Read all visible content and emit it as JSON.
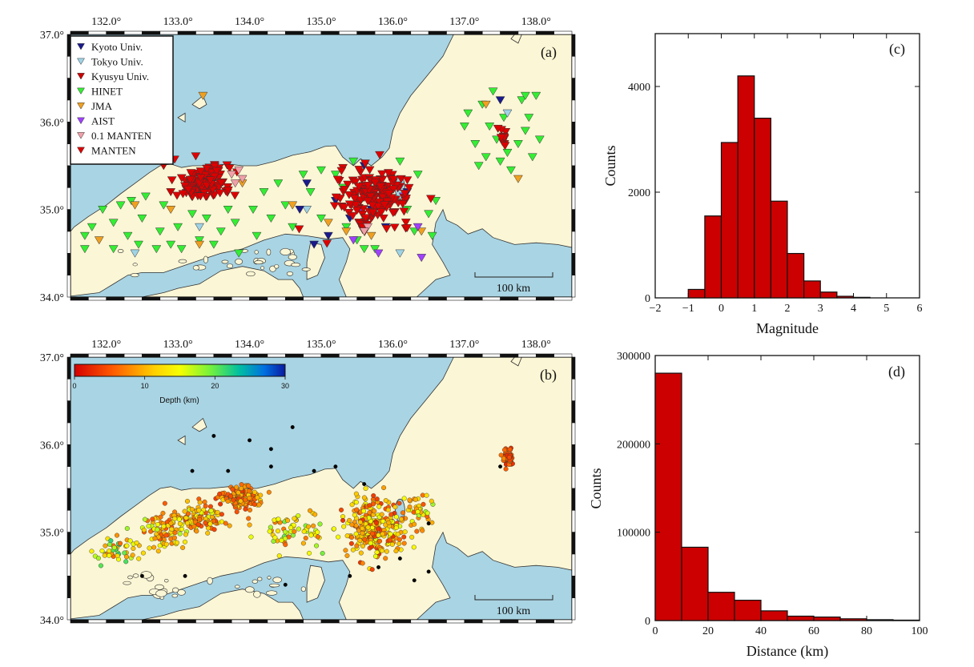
{
  "colors": {
    "sea": "#a9d4e3",
    "land": "#fbf6d5",
    "bar": "#cc0000",
    "coast": "#333333"
  },
  "chart_data": [
    {
      "type": "scatter",
      "panel": "(a)",
      "xlim": [
        131.5,
        138.5
      ],
      "ylim": [
        34.0,
        37.0
      ],
      "x_ticks": [
        "132.0°",
        "133.0°",
        "134.0°",
        "135.0°",
        "136.0°",
        "137.0°",
        "138.0°"
      ],
      "y_ticks": [
        "34.0°",
        "35.0°",
        "36.0°",
        "37.0°"
      ],
      "scale_bar": "100 km",
      "legend_placement": "top-left",
      "series": [
        {
          "name": "Kyoto Univ.",
          "color": "#1a1a8c",
          "points": [
            [
              134.8,
              35.3
            ],
            [
              135.2,
              35.1
            ],
            [
              135.4,
              34.9
            ],
            [
              135.7,
              35.0
            ],
            [
              135.9,
              34.8
            ],
            [
              136.2,
              35.2
            ],
            [
              134.9,
              34.6
            ],
            [
              135.1,
              34.7
            ],
            [
              137.5,
              36.25
            ],
            [
              135.6,
              35.5
            ],
            [
              134.7,
              35.0
            ]
          ]
        },
        {
          "name": "Tokyo Univ.",
          "color": "#9fd3e6",
          "points": [
            [
              132.4,
              34.5
            ],
            [
              133.3,
              34.8
            ],
            [
              134.8,
              35.0
            ],
            [
              136.1,
              34.5
            ],
            [
              137.6,
              36.1
            ]
          ]
        },
        {
          "name": "Kyusyu Univ.",
          "color": "#cc0000",
          "points": [
            [
              132.8,
              35.5
            ],
            [
              132.9,
              35.2
            ]
          ]
        },
        {
          "name": "HINET",
          "color": "#33ee33",
          "points": [
            [
              131.7,
              34.7
            ],
            [
              131.7,
              34.55
            ],
            [
              131.8,
              34.8
            ],
            [
              131.95,
              35.0
            ],
            [
              132.1,
              34.85
            ],
            [
              132.1,
              34.55
            ],
            [
              132.2,
              35.05
            ],
            [
              132.3,
              34.7
            ],
            [
              132.35,
              35.1
            ],
            [
              132.45,
              34.6
            ],
            [
              132.5,
              34.9
            ],
            [
              132.55,
              35.15
            ],
            [
              132.7,
              34.55
            ],
            [
              132.75,
              34.75
            ],
            [
              132.8,
              35.05
            ],
            [
              132.9,
              34.6
            ],
            [
              133.0,
              34.8
            ],
            [
              133.05,
              34.55
            ],
            [
              133.2,
              34.95
            ],
            [
              133.3,
              34.65
            ],
            [
              133.4,
              34.9
            ],
            [
              133.5,
              34.6
            ],
            [
              133.6,
              34.75
            ],
            [
              133.7,
              35.0
            ],
            [
              133.8,
              34.85
            ],
            [
              133.85,
              34.5
            ],
            [
              134.05,
              35.0
            ],
            [
              134.1,
              34.7
            ],
            [
              134.2,
              35.2
            ],
            [
              134.3,
              34.9
            ],
            [
              134.4,
              35.3
            ],
            [
              134.5,
              35.05
            ],
            [
              134.6,
              34.8
            ],
            [
              134.75,
              35.4
            ],
            [
              134.85,
              35.2
            ],
            [
              135.0,
              35.45
            ],
            [
              135.0,
              34.9
            ],
            [
              135.2,
              35.4
            ],
            [
              135.3,
              35.25
            ],
            [
              135.35,
              34.8
            ],
            [
              135.45,
              35.55
            ],
            [
              135.5,
              34.65
            ],
            [
              135.6,
              34.55
            ],
            [
              135.75,
              34.55
            ],
            [
              136.1,
              35.55
            ],
            [
              136.2,
              35.0
            ],
            [
              136.3,
              34.75
            ],
            [
              136.35,
              35.4
            ],
            [
              136.5,
              34.95
            ],
            [
              136.55,
              34.7
            ],
            [
              136.6,
              35.1
            ],
            [
              137.0,
              35.95
            ],
            [
              137.05,
              36.1
            ],
            [
              137.15,
              35.75
            ],
            [
              137.25,
              36.2
            ],
            [
              137.35,
              35.95
            ],
            [
              137.3,
              35.6
            ],
            [
              137.4,
              36.35
            ],
            [
              137.45,
              35.8
            ],
            [
              137.5,
              35.55
            ],
            [
              137.55,
              36.05
            ],
            [
              137.65,
              35.45
            ],
            [
              137.75,
              35.75
            ],
            [
              137.8,
              36.25
            ],
            [
              137.85,
              35.9
            ],
            [
              137.9,
              36.05
            ],
            [
              137.95,
              35.6
            ],
            [
              138.0,
              36.3
            ],
            [
              138.05,
              35.8
            ],
            [
              137.85,
              36.3
            ],
            [
              137.2,
              35.5
            ],
            [
              137.6,
              35.65
            ]
          ]
        },
        {
          "name": "JMA",
          "color": "#f0a020",
          "points": [
            [
              131.9,
              34.65
            ],
            [
              132.4,
              35.05
            ],
            [
              132.9,
              35.0
            ],
            [
              133.3,
              34.6
            ],
            [
              133.9,
              35.3
            ],
            [
              134.6,
              35.05
            ],
            [
              135.1,
              34.85
            ],
            [
              135.35,
              34.75
            ],
            [
              135.7,
              34.7
            ],
            [
              136.4,
              34.75
            ],
            [
              137.3,
              36.2
            ],
            [
              137.75,
              35.35
            ],
            [
              133.35,
              36.3
            ]
          ]
        },
        {
          "name": "AIST",
          "color": "#a040ff",
          "points": [
            [
              135.45,
              34.65
            ],
            [
              135.8,
              34.5
            ],
            [
              136.15,
              35.15
            ],
            [
              136.35,
              34.8
            ],
            [
              136.4,
              34.45
            ],
            [
              135.55,
              35.0
            ]
          ]
        },
        {
          "name": "0.1 MANTEN",
          "color": "#f0a0a8",
          "points": [
            [
              133.75,
              35.4
            ],
            [
              133.8,
              35.3
            ],
            [
              133.85,
              35.45
            ],
            [
              133.9,
              35.35
            ],
            [
              135.65,
              34.8
            ],
            [
              135.6,
              34.75
            ]
          ]
        },
        {
          "name": "MANTEN",
          "color": "#dd0000",
          "clusters": [
            [
              133.35,
              35.3,
              0.35,
              0.17,
              140
            ],
            [
              135.75,
              35.15,
              0.45,
              0.28,
              170
            ],
            [
              137.55,
              35.8,
              0.08,
              0.1,
              10
            ]
          ]
        }
      ]
    },
    {
      "type": "scatter",
      "panel": "(b)",
      "xlim": [
        131.5,
        138.5
      ],
      "ylim": [
        34.0,
        37.0
      ],
      "x_ticks": [
        "132.0°",
        "133.0°",
        "134.0°",
        "135.0°",
        "136.0°",
        "137.0°",
        "138.0°"
      ],
      "y_ticks": [
        "34.0°",
        "35.0°",
        "36.0°",
        "37.0°"
      ],
      "scale_bar": "100 km",
      "colorbar": {
        "label": "Depth (km)",
        "ticks": [
          "0",
          "10",
          "20",
          "30"
        ],
        "range": [
          0,
          30
        ]
      },
      "clusters": [
        {
          "cx": 133.9,
          "cy": 35.4,
          "sx": 0.25,
          "sy": 0.1,
          "n": 160,
          "depth": [
            3,
            12
          ]
        },
        {
          "cx": 133.3,
          "cy": 35.15,
          "sx": 0.3,
          "sy": 0.12,
          "n": 110,
          "depth": [
            4,
            16
          ]
        },
        {
          "cx": 132.8,
          "cy": 35.0,
          "sx": 0.25,
          "sy": 0.16,
          "n": 80,
          "depth": [
            5,
            18
          ]
        },
        {
          "cx": 132.2,
          "cy": 34.8,
          "sx": 0.3,
          "sy": 0.15,
          "n": 50,
          "depth": [
            6,
            22
          ]
        },
        {
          "cx": 135.75,
          "cy": 35.05,
          "sx": 0.32,
          "sy": 0.28,
          "n": 280,
          "depth": [
            3,
            16
          ]
        },
        {
          "cx": 136.35,
          "cy": 35.25,
          "sx": 0.15,
          "sy": 0.2,
          "n": 40,
          "depth": [
            5,
            18
          ]
        },
        {
          "cx": 134.6,
          "cy": 35.0,
          "sx": 0.5,
          "sy": 0.22,
          "n": 70,
          "depth": [
            5,
            20
          ]
        },
        {
          "cx": 137.6,
          "cy": 35.85,
          "sx": 0.07,
          "sy": 0.08,
          "n": 60,
          "depth": [
            2,
            8
          ]
        }
      ],
      "deep_events": [
        [
          133.5,
          36.1
        ],
        [
          134.0,
          36.05
        ],
        [
          134.6,
          36.2
        ],
        [
          133.2,
          35.7
        ],
        [
          133.7,
          35.7
        ],
        [
          134.3,
          35.75
        ],
        [
          134.3,
          35.95
        ],
        [
          133.1,
          34.5
        ],
        [
          134.5,
          34.4
        ],
        [
          135.8,
          34.6
        ],
        [
          136.1,
          34.7
        ],
        [
          136.3,
          34.45
        ],
        [
          136.5,
          34.55
        ],
        [
          135.4,
          34.5
        ],
        [
          134.9,
          35.7
        ],
        [
          135.6,
          35.55
        ],
        [
          136.5,
          35.1
        ],
        [
          137.5,
          35.75
        ],
        [
          132.5,
          34.5
        ],
        [
          135.2,
          35.75
        ]
      ]
    },
    {
      "type": "bar",
      "panel": "(c)",
      "xlabel": "Magnitude",
      "ylabel": "Counts",
      "xlim": [
        -2,
        6
      ],
      "ylim": [
        0,
        5000
      ],
      "x_ticks": [
        -2,
        -1,
        0,
        1,
        2,
        3,
        4,
        5,
        6
      ],
      "y_ticks": [
        0,
        2000,
        4000
      ],
      "bin_width": 0.5,
      "bin_starts": [
        -1.0,
        -0.5,
        0.0,
        0.5,
        1.0,
        1.5,
        2.0,
        2.5,
        3.0,
        3.5,
        4.0
      ],
      "values": [
        160,
        1550,
        2940,
        4200,
        3400,
        1830,
        840,
        320,
        110,
        30,
        10
      ]
    },
    {
      "type": "bar",
      "panel": "(d)",
      "xlabel": "Distance (km)",
      "ylabel": "Counts",
      "xlim": [
        0,
        100
      ],
      "ylim": [
        0,
        300000
      ],
      "x_ticks": [
        0,
        20,
        40,
        60,
        80,
        100
      ],
      "y_ticks": [
        0,
        100000,
        200000,
        300000
      ],
      "bin_width": 10,
      "bin_starts": [
        0,
        10,
        20,
        30,
        40,
        50,
        60,
        70,
        80,
        90
      ],
      "values": [
        280000,
        83000,
        32000,
        23000,
        11000,
        5000,
        4000,
        2000,
        1000,
        500
      ]
    }
  ]
}
